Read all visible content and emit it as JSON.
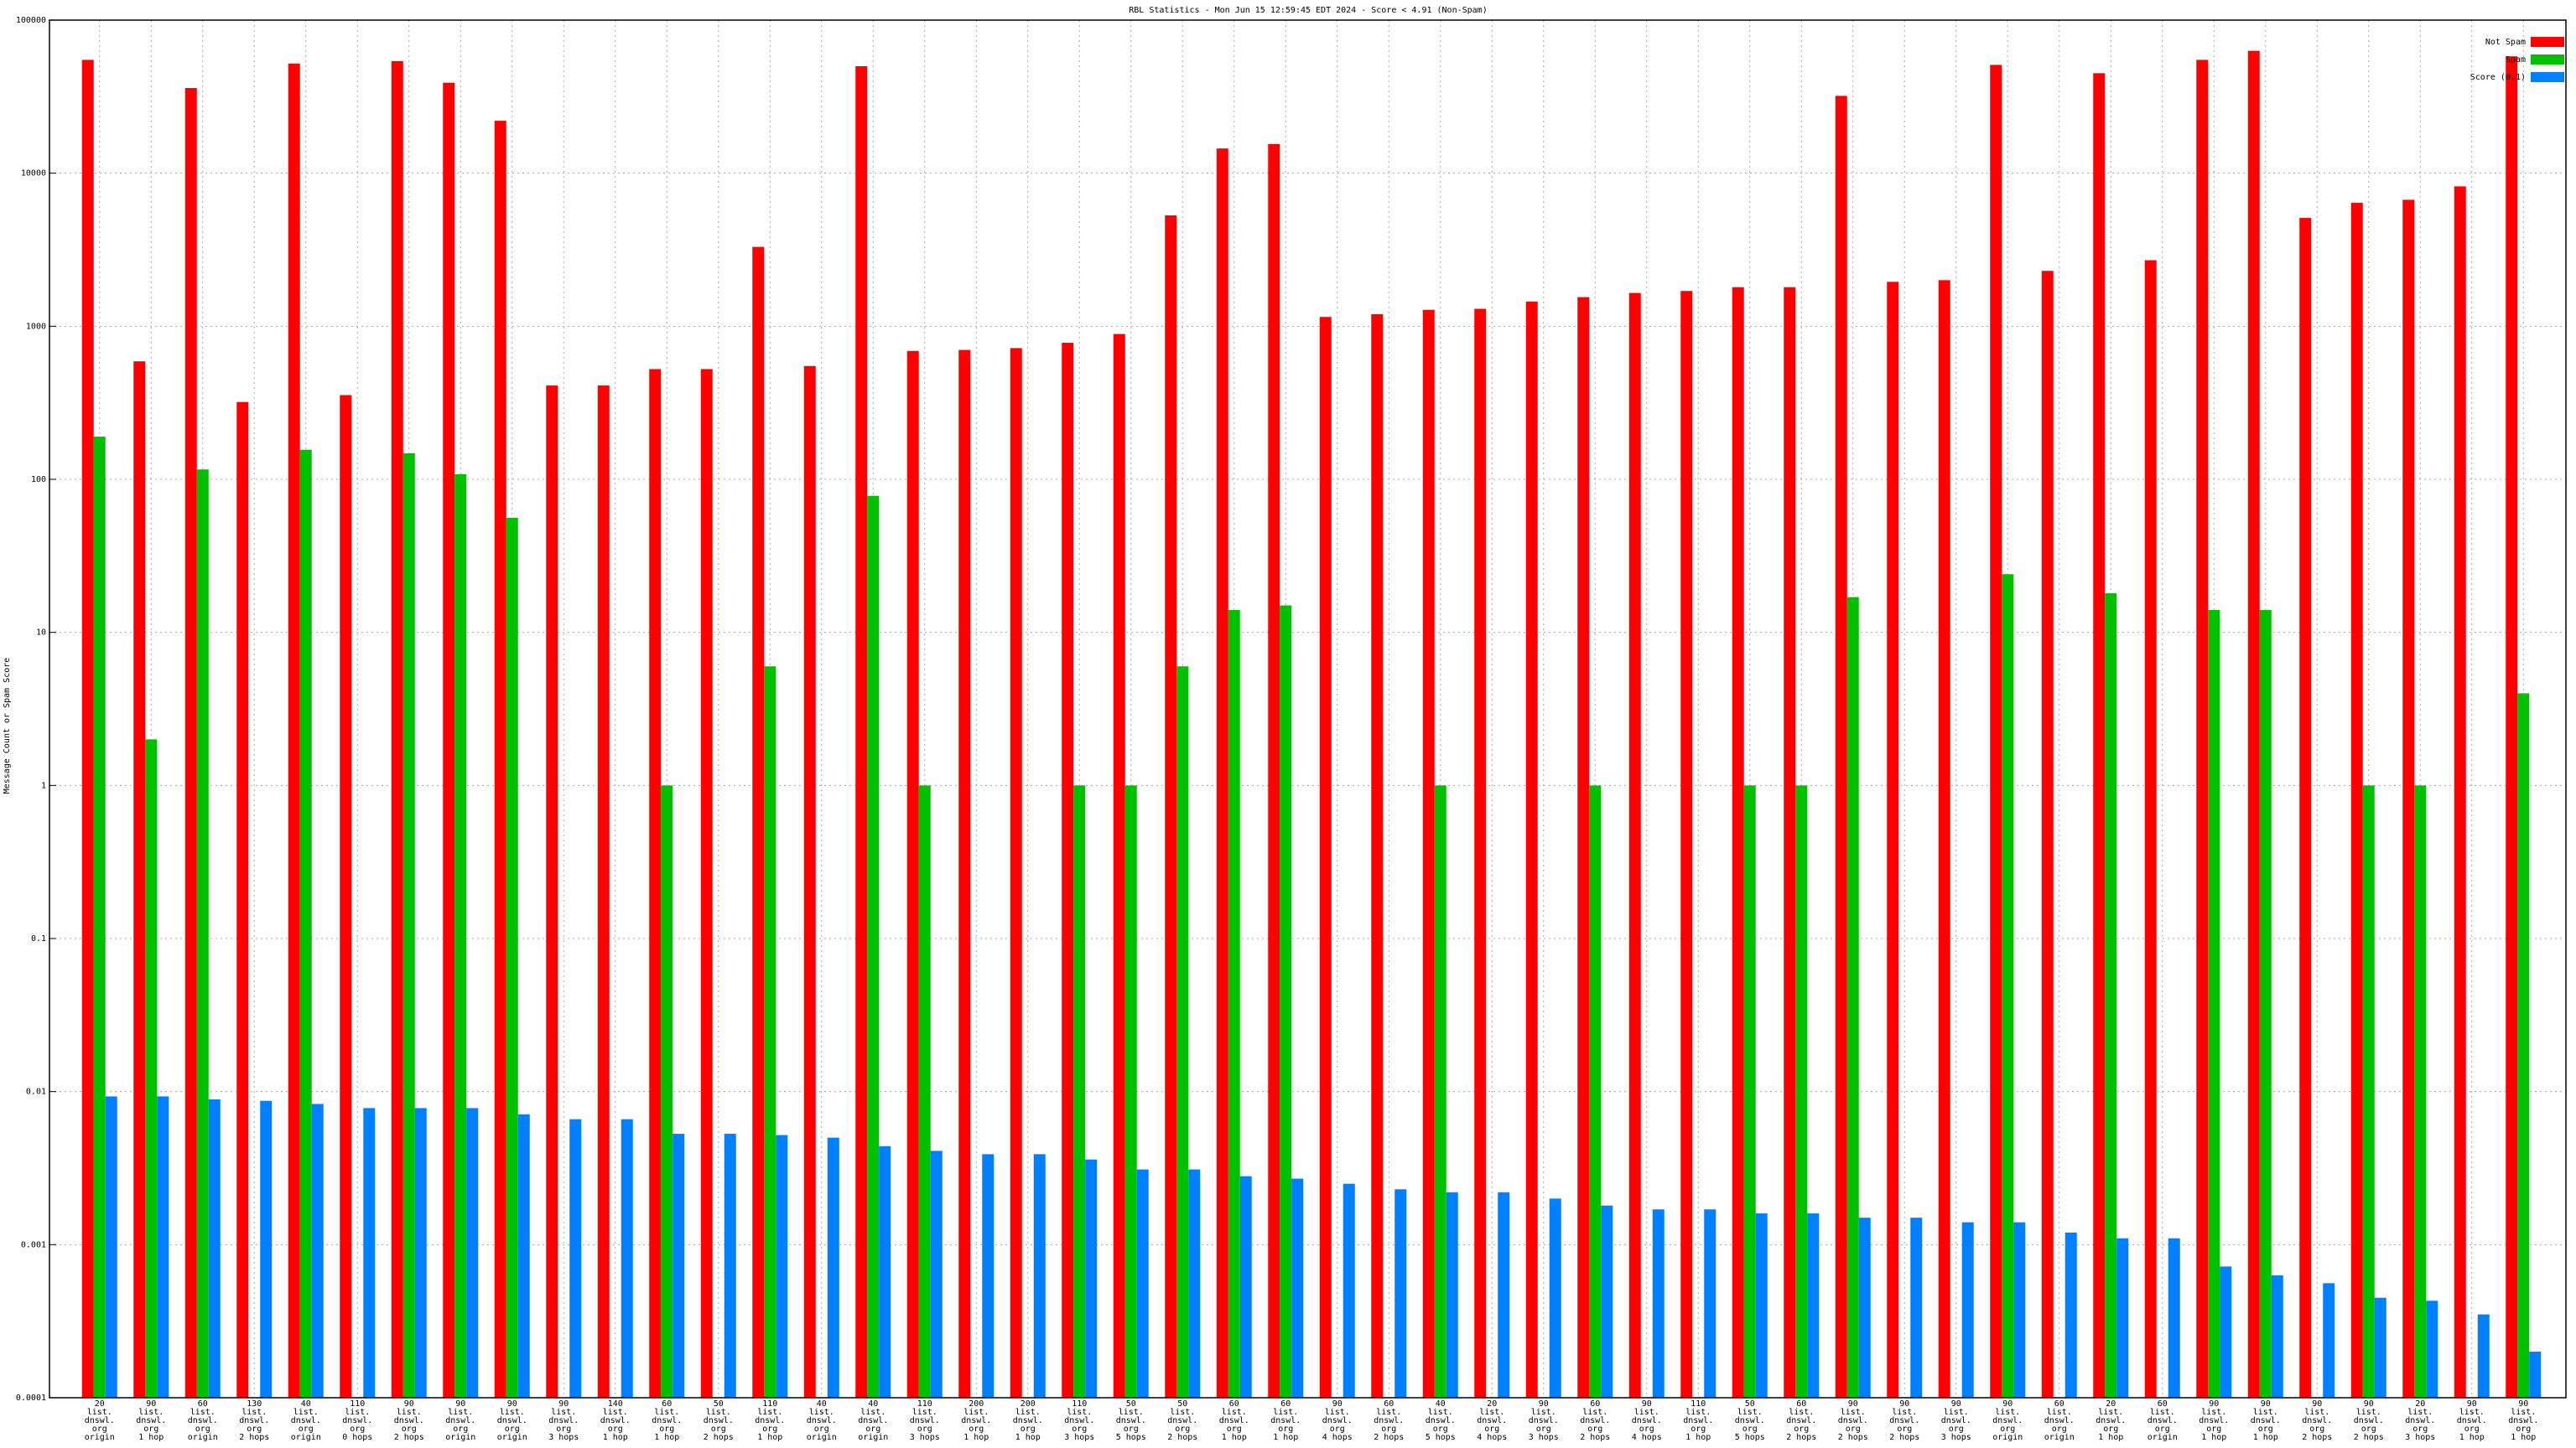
{
  "chart_data": {
    "type": "bar",
    "title": "RBL Statistics - Mon Jun 15 12:59:45 EDT 2024 - Score < 4.91 (Non-Spam)",
    "y_label": "Message Count or Spam Score",
    "log_scale": true,
    "grid": true,
    "legend": "top-right",
    "ylim": [
      0.0001,
      100000
    ],
    "yticks": [
      0.0001,
      0.001,
      0.01,
      0.1,
      1,
      10,
      100,
      1000,
      10000,
      100000
    ],
    "categories": [
      "20\nlist.\ndnswl.\norg\norigin",
      "90\nlist.\ndnswl.\norg\n1 hop",
      "60\nlist.\ndnswl.\norg\norigin",
      "130\nlist.\ndnswl.\norg\n2 hops",
      "40\nlist.\ndnswl.\norg\norigin",
      "110\nlist.\ndnswl.\norg\n0 hops",
      "90\nlist.\ndnswl.\norg\n2 hops",
      "90\nlist.\ndnswl.\norg\norigin",
      "90\nlist.\ndnswl.\norg\norigin",
      "90\nlist.\ndnswl.\norg\n3 hops",
      "140\nlist.\ndnswl.\norg\n1 hop",
      "60\nlist.\ndnswl.\norg\n1 hop",
      "50\nlist.\ndnswl.\norg\n2 hops",
      "110\nlist.\ndnswl.\norg\n1 hop",
      "40\nlist.\ndnswl.\norg\norigin",
      "40\nlist.\ndnswl.\norg\norigin",
      "110\nlist.\ndnswl.\norg\n3 hops",
      "200\nlist.\ndnswl.\norg\n1 hop",
      "200\nlist.\ndnswl.\norg\n1 hop",
      "110\nlist.\ndnswl.\norg\n3 hops",
      "50\nlist.\ndnswl.\norg\n5 hops",
      "50\nlist.\ndnswl.\norg\n2 hops",
      "60\nlist.\ndnswl.\norg\n1 hop",
      "60\nlist.\ndnswl.\norg\n1 hop",
      "90\nlist.\ndnswl.\norg\n4 hops",
      "60\nlist.\ndnswl.\norg\n2 hops",
      "40\nlist.\ndnswl.\norg\n5 hops",
      "20\nlist.\ndnswl.\norg\n4 hops",
      "90\nlist.\ndnswl.\norg\n3 hops",
      "60\nlist.\ndnswl.\norg\n2 hops",
      "90\nlist.\ndnswl.\norg\n4 hops",
      "110\nlist.\ndnswl.\norg\n1 hop",
      "50\nlist.\ndnswl.\norg\n5 hops",
      "60\nlist.\ndnswl.\norg\n2 hops",
      "90\nlist.\ndnswl.\norg\n2 hops",
      "90\nlist.\ndnswl.\norg\n2 hops",
      "90\nlist.\ndnswl.\norg\n3 hops",
      "90\nlist.\ndnswl.\norg\norigin",
      "60\nlist.\ndnswl.\norg\norigin",
      "20\nlist.\ndnswl.\norg\n1 hop",
      "60\nlist.\ndnswl.\norg\norigin",
      "90\nlist.\ndnswl.\norg\n1 hop",
      "90\nlist.\ndnswl.\norg\n1 hop",
      "90\nlist.\ndnswl.\norg\n2 hops",
      "90\nlist.\ndnswl.\norg\n2 hops",
      "20\nlist.\ndnswl.\norg\n3 hops",
      "90\nlist.\ndnswl.\norg\n1 hop",
      "90\nlist.\ndnswl.\norg\n1 hop"
    ],
    "series": [
      {
        "name": "Not Spam",
        "color": "#ff0000",
        "values": [
          55000,
          590,
          36000,
          320,
          52000,
          355,
          54000,
          39000,
          22000,
          410,
          410,
          525,
          525,
          3300,
          550,
          50000,
          690,
          700,
          720,
          780,
          890,
          5300,
          14500,
          15500,
          1150,
          1200,
          1280,
          1300,
          1450,
          1550,
          1650,
          1700,
          1800,
          1800,
          32000,
          1950,
          2000,
          51000,
          2300,
          45000,
          2700,
          55000,
          63000,
          5100,
          6400,
          6700,
          8200,
          58000
        ]
      },
      {
        "name": "Spam",
        "color": "#00c000",
        "values": [
          190,
          2,
          116,
          null,
          156,
          null,
          148,
          108,
          56,
          null,
          null,
          1,
          null,
          6,
          null,
          78,
          1,
          null,
          null,
          1,
          1,
          6,
          14,
          15,
          null,
          null,
          1,
          null,
          null,
          1,
          null,
          null,
          1,
          1,
          17,
          null,
          null,
          24,
          null,
          18,
          null,
          14,
          14,
          null,
          1,
          1,
          null,
          4
        ]
      },
      {
        "name": "Score (0.1)",
        "color": "#0080ff",
        "values": [
          0.0093,
          0.0093,
          0.0089,
          0.0087,
          0.0083,
          0.0078,
          0.0078,
          0.0078,
          0.0071,
          0.0066,
          0.0066,
          0.0053,
          0.0053,
          0.0052,
          0.005,
          0.0044,
          0.0041,
          0.0039,
          0.0039,
          0.0036,
          0.0031,
          0.0031,
          0.0028,
          0.0027,
          0.0025,
          0.0023,
          0.0022,
          0.0022,
          0.002,
          0.0018,
          0.0017,
          0.0017,
          0.0016,
          0.0016,
          0.0015,
          0.0015,
          0.0014,
          0.0014,
          0.0012,
          0.0011,
          0.0011,
          0.00072,
          0.00063,
          0.00056,
          0.00045,
          0.00043,
          0.00035,
          0.0002
        ]
      }
    ]
  }
}
